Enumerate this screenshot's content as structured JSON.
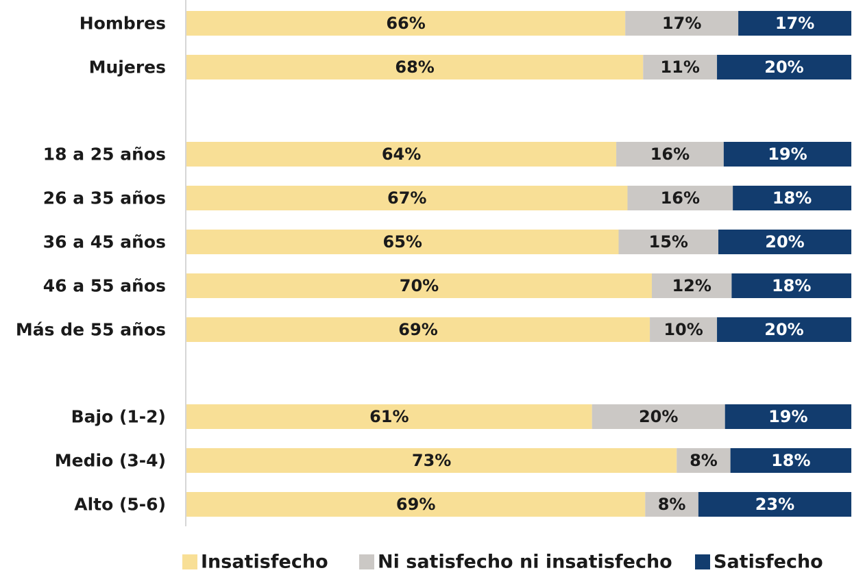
{
  "colors": {
    "insatisfecho": "#f8df96",
    "neutral": "#cbc8c5",
    "satisfecho": "#123c6e",
    "axis": "#c9c9c9",
    "label_dark": "#1a1a1a",
    "label_light": "#ffffff"
  },
  "chart_data": {
    "type": "bar",
    "orientation": "horizontal",
    "stacked": true,
    "title": "",
    "xlabel": "",
    "ylabel": "",
    "xlim": [
      0,
      100
    ],
    "grid": false,
    "legend_position": "bottom",
    "categories": [
      "Hombres",
      "Mujeres",
      "18 a 25 años",
      "26 a 35 años",
      "36 a 45 años",
      "46 a 55 años",
      "Más de 55 años",
      "Bajo (1-2)",
      "Medio (3-4)",
      "Alto (5-6)"
    ],
    "groups": [
      [
        "Hombres",
        "Mujeres"
      ],
      [
        "18 a 25 años",
        "26 a 35 años",
        "36 a 45 años",
        "46 a 55 años",
        "Más de 55 años"
      ],
      [
        "Bajo (1-2)",
        "Medio (3-4)",
        "Alto (5-6)"
      ]
    ],
    "series": [
      {
        "name": "Insatisfecho",
        "values": [
          66,
          68,
          64,
          67,
          65,
          70,
          69,
          61,
          73,
          69
        ]
      },
      {
        "name": "Ni satisfecho ni insatisfecho",
        "values": [
          17,
          11,
          16,
          16,
          15,
          12,
          10,
          20,
          8,
          8
        ]
      },
      {
        "name": "Satisfecho",
        "values": [
          17,
          20,
          19,
          18,
          20,
          18,
          20,
          19,
          18,
          23
        ]
      }
    ],
    "value_suffix": "%"
  }
}
